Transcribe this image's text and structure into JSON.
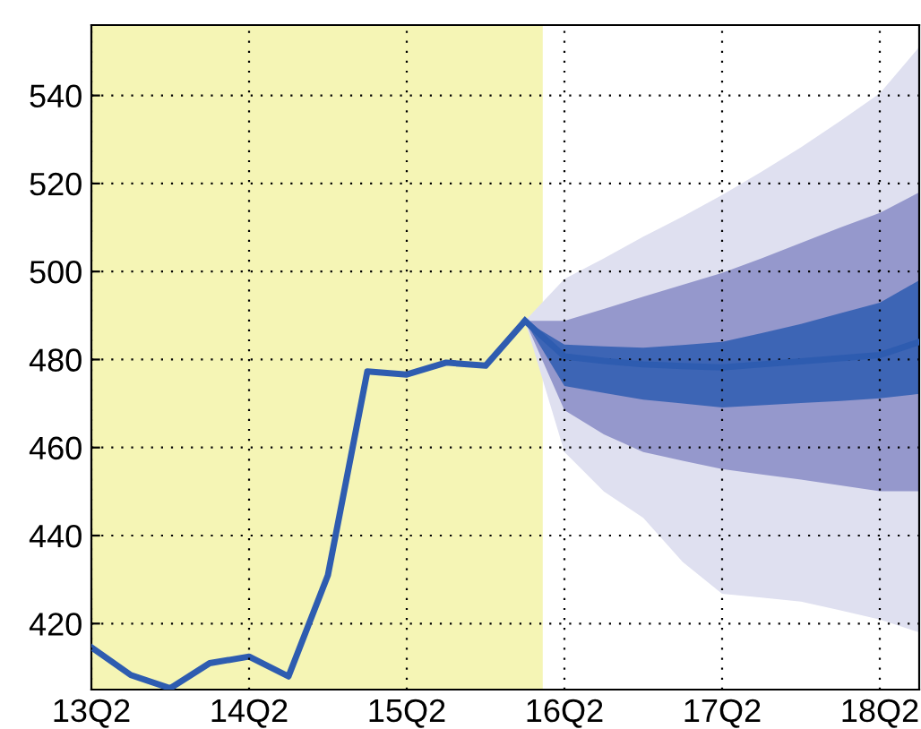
{
  "chart_data": {
    "type": "line",
    "categories": [
      "13Q2",
      null,
      null,
      null,
      "14Q2",
      null,
      null,
      null,
      "15Q2",
      null,
      null,
      null,
      "16Q2",
      null,
      null,
      null,
      "17Q2",
      null,
      null,
      null,
      "18Q2",
      null
    ],
    "series": [
      {
        "color": "#dfe0f0",
        "values": [
          null,
          null,
          null,
          null,
          null,
          null,
          null,
          null,
          null,
          null,
          null,
          null,
          null,
          null,
          null,
          null,
          null,
          null,
          null,
          null,
          null,
          null
        ],
        "lower": [
          null,
          null,
          null,
          null,
          null,
          null,
          null,
          null,
          null,
          null,
          null,
          488.8,
          459,
          450,
          444,
          434,
          426.8,
          425.9,
          425,
          423,
          420.9,
          418
        ],
        "upper": [
          null,
          null,
          null,
          null,
          null,
          null,
          null,
          null,
          null,
          null,
          null,
          488.8,
          498.3,
          503,
          507.9,
          512.5,
          517.4,
          522.7,
          528.2,
          534.2,
          540.5,
          551
        ]
      },
      {
        "color": "#9598cc",
        "values": [
          null,
          null,
          null,
          null,
          null,
          null,
          null,
          null,
          null,
          null,
          null,
          null,
          null,
          null,
          null,
          null,
          null,
          null,
          null,
          null,
          null,
          null
        ],
        "lower": [
          null,
          null,
          null,
          null,
          null,
          null,
          null,
          null,
          null,
          null,
          null,
          488.8,
          468.5,
          463,
          459,
          457,
          455.1,
          453.9,
          452.7,
          451.4,
          450.1,
          450.1
        ],
        "upper": [
          null,
          null,
          null,
          null,
          null,
          null,
          null,
          null,
          null,
          null,
          null,
          488.8,
          488.8,
          491.5,
          494.3,
          497,
          499.7,
          503,
          506.5,
          510,
          513.3,
          518
        ]
      },
      {
        "color": "#2e5cb0",
        "values": [
          null,
          null,
          null,
          null,
          null,
          null,
          null,
          null,
          null,
          null,
          null,
          488.8,
          480.7,
          479.7,
          478.9,
          478.5,
          478.2,
          478.9,
          479.6,
          480.3,
          481,
          484
        ],
        "lower": [
          null,
          null,
          null,
          null,
          null,
          null,
          null,
          null,
          null,
          null,
          null,
          488.8,
          474,
          472.4,
          470.9,
          470,
          469.1,
          469.6,
          470.1,
          470.6,
          471.2,
          472.2
        ],
        "upper": [
          null,
          null,
          null,
          null,
          null,
          null,
          null,
          null,
          null,
          null,
          null,
          488.8,
          483.4,
          483,
          482.7,
          483.3,
          484,
          486,
          488.1,
          490.5,
          492.9,
          498
        ]
      },
      {
        "color": "#2e5cb0",
        "values": [
          414.6,
          408.3,
          405.3,
          411,
          412.5,
          408,
          431,
          477.3,
          476.6,
          479.3,
          478.6,
          488.8,
          null,
          null,
          null,
          null,
          null,
          null,
          null,
          null,
          null,
          null
        ]
      }
    ],
    "ylim": [
      405,
      556
    ],
    "yticks": [
      420,
      440,
      460,
      480,
      500,
      520,
      540
    ],
    "grid": true,
    "line_style": "solid",
    "marker": "none"
  }
}
